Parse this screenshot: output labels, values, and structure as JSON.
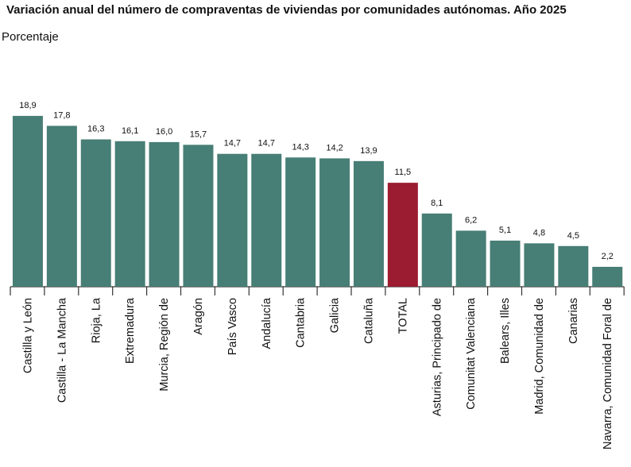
{
  "chart_data": {
    "type": "bar",
    "title": "Variación anual del número de compraventas de viviendas por comunidades autónomas. Año 2025",
    "ylabel": "Porcentaje",
    "categories": [
      "Castilla y León",
      "Castilla - La Mancha",
      "Rioja, La",
      "Extremadura",
      "Murcia, Región de",
      "Aragón",
      "País Vasco",
      "Andalucía",
      "Cantabria",
      "Galicia",
      "Cataluña",
      "TOTAL",
      "Asturias, Principado de",
      "Comunitat Valenciana",
      "Balears, Illes",
      "Madrid, Comunidad de",
      "Canarias",
      "Navarra, Comunidad Foral de"
    ],
    "values": [
      18.9,
      17.8,
      16.3,
      16.1,
      16.0,
      15.7,
      14.7,
      14.7,
      14.3,
      14.2,
      13.9,
      11.5,
      8.1,
      6.2,
      5.1,
      4.8,
      4.5,
      2.2
    ],
    "data_labels": [
      "18,9",
      "17,8",
      "16,3",
      "16,1",
      "16,0",
      "15,7",
      "14,7",
      "14,7",
      "14,3",
      "14,2",
      "13,9",
      "11,5",
      "8,1",
      "6,2",
      "5,1",
      "4,8",
      "4,5",
      "2,2"
    ],
    "ylim": [
      0,
      19
    ],
    "grid": false,
    "colors": {
      "default": "#477e75",
      "highlight": "#9b1b30"
    },
    "highlight": "TOTAL"
  }
}
